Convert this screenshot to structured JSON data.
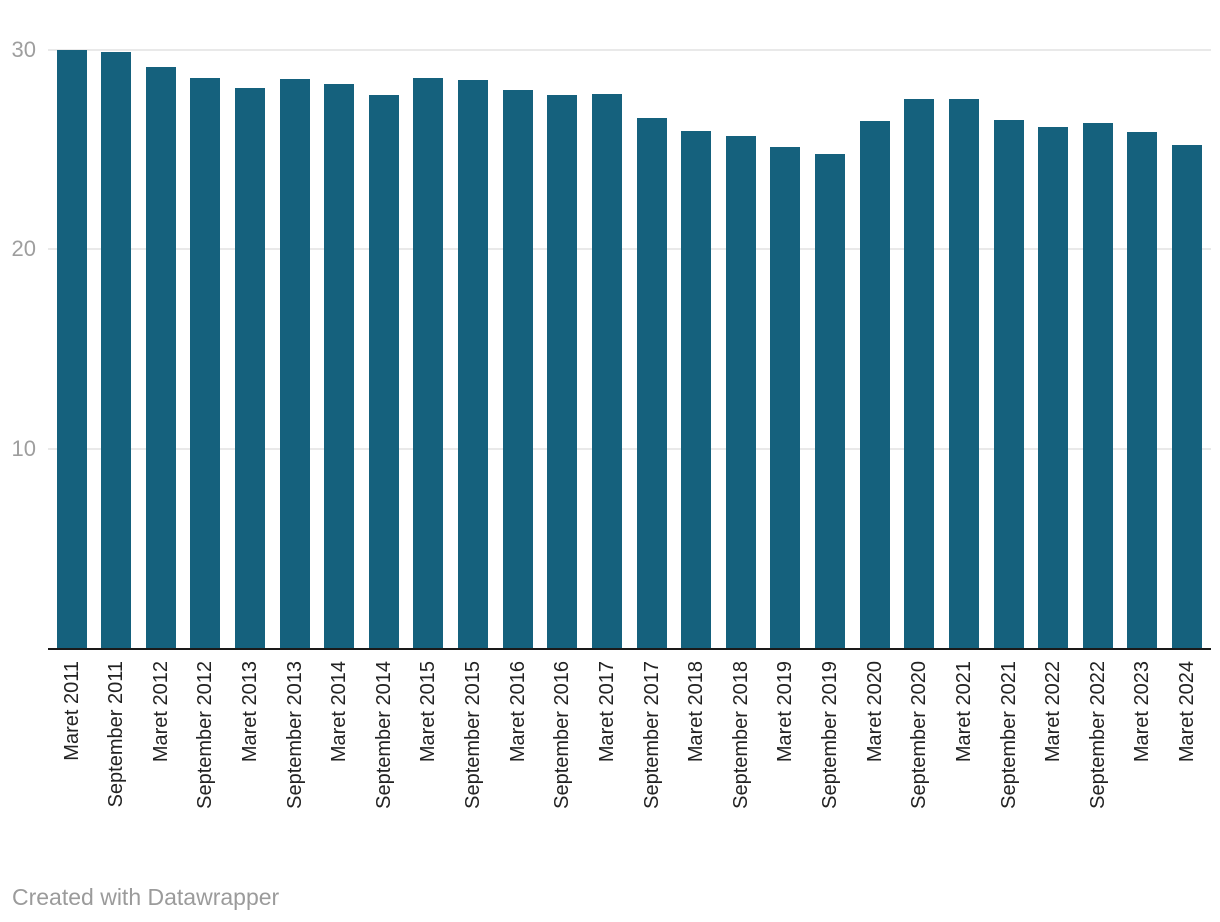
{
  "chart_data": {
    "type": "bar",
    "title": "",
    "xlabel": "",
    "ylabel": "",
    "categories": [
      "Maret 2011",
      "September 2011",
      "Maret 2012",
      "September 2012",
      "Maret 2013",
      "September 2013",
      "Maret 2014",
      "September 2014",
      "Maret 2015",
      "September 2015",
      "Maret 2016",
      "September 2016",
      "Maret 2017",
      "September 2017",
      "Maret 2018",
      "September 2018",
      "Maret 2019",
      "September 2019",
      "Maret 2020",
      "September 2020",
      "Maret 2021",
      "September 2021",
      "Maret 2022",
      "September 2022",
      "Maret 2023",
      "Maret 2024"
    ],
    "values": [
      30.02,
      29.89,
      29.13,
      28.59,
      28.07,
      28.55,
      28.28,
      27.73,
      28.59,
      28.51,
      28.01,
      27.76,
      27.77,
      26.58,
      25.95,
      25.67,
      25.14,
      24.79,
      26.42,
      27.55,
      27.54,
      26.5,
      26.16,
      26.36,
      25.9,
      25.22
    ],
    "ylim": [
      0,
      30
    ],
    "yticks": [
      10,
      20,
      30
    ],
    "grid": true,
    "legend": "none",
    "x_label_rotation": -90
  },
  "colors": {
    "bar": "#15617d",
    "gridline": "#e9e9e9",
    "axis_line": "#1a1a1a",
    "y_tick_label": "#9e9e9e",
    "x_tick_label": "#222222",
    "footer_text": "#9b9b9b"
  },
  "footer": {
    "credit": "Created with Datawrapper"
  }
}
